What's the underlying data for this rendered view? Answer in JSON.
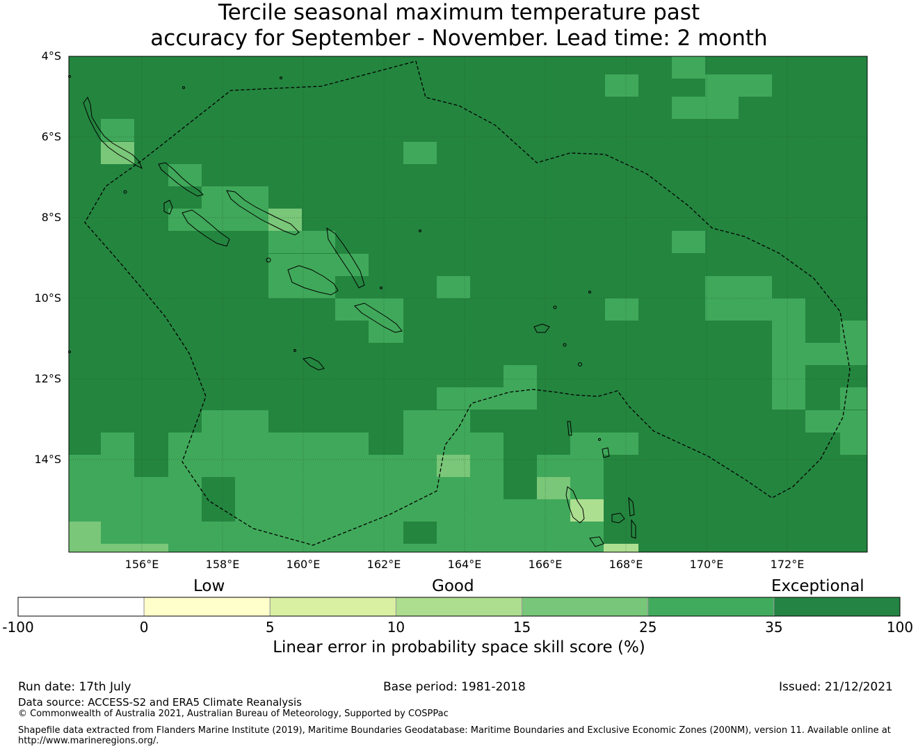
{
  "title": {
    "line1": "Tercile seasonal maximum temperature past",
    "line2": "accuracy for September - November. Lead time: 2 month"
  },
  "map": {
    "lat_labels": [
      "4°S",
      "6°S",
      "8°S",
      "10°S",
      "12°S",
      "14°S"
    ],
    "lon_labels": [
      "156°E",
      "158°E",
      "160°E",
      "162°E",
      "164°E",
      "166°E",
      "168°E",
      "170°E",
      "172°E"
    ],
    "base_color": "#24853f",
    "cell_colors": {
      "b": "#40a85a",
      "c": "#7ac779",
      "d": "#addf91"
    },
    "coastline_color": "#000000",
    "eez_style": "dashed"
  },
  "colorbar": {
    "categories": [
      "Low",
      "Good",
      "Exceptional"
    ],
    "ticks": [
      "-100",
      "0",
      "5",
      "10",
      "15",
      "25",
      "35",
      "100"
    ],
    "colors": [
      "#ffffff",
      "#ffffcc",
      "#d9f0a3",
      "#addd8e",
      "#78c679",
      "#41ab5d",
      "#238443"
    ],
    "title": "Linear error in probability space skill score (%)"
  },
  "footer": {
    "run_date": "Run date: 17th July",
    "base_period": "Base period: 1981-2018",
    "issued": "Issued: 21/12/2021",
    "data_source": "Data source: ACCESS-S2 and ERA5 Climate Reanalysis",
    "copyright": "© Commonwealth of Australia 2021, Australian Bureau of Meteorology, Supported by COSPPac",
    "shapefile_line1": "Shapefile data extracted from Flanders Marine Institute (2019), Maritime Boundaries Geodatabase: Maritime Boundaries and Exclusive Economic Zones (200NM), version 11. Available online at",
    "shapefile_line2": "http://www.marineregions.org/."
  }
}
